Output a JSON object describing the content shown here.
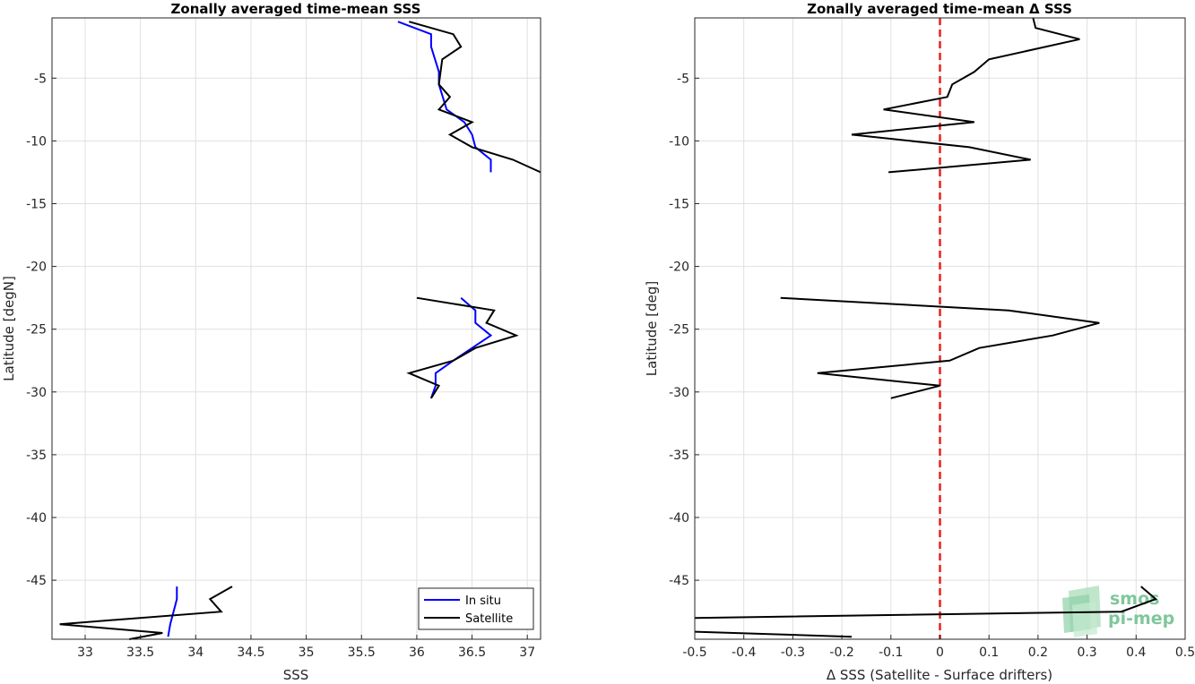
{
  "chart_data": [
    {
      "type": "line",
      "title": "Zonally averaged time-mean SSS",
      "xlabel": "SSS",
      "ylabel": "Latitude [degN]",
      "xlim": [
        32.7,
        37.12
      ],
      "ylim": [
        -49.7,
        -0.2
      ],
      "xticks": [
        33,
        33.5,
        34,
        34.5,
        35,
        35.5,
        36,
        36.5,
        37
      ],
      "xtick_labels": [
        "33",
        "33.5",
        "34",
        "34.5",
        "35",
        "35.5",
        "36",
        "36.5",
        "37"
      ],
      "yticks": [
        -5,
        -10,
        -15,
        -20,
        -25,
        -30,
        -35,
        -40,
        -45
      ],
      "ytick_labels": [
        "-5",
        "-10",
        "-15",
        "-20",
        "-25",
        "-30",
        "-35",
        "-40",
        "-45"
      ],
      "grid": true,
      "legend": "bottom-right",
      "series": [
        {
          "name": "In situ",
          "color": "#0000ff",
          "segments": [
            [
              [
                35.83,
                -0.5
              ],
              [
                36.13,
                -1.5
              ],
              [
                36.13,
                -2.5
              ],
              [
                36.2,
                -4.5
              ],
              [
                36.2,
                -5.5
              ],
              [
                36.27,
                -7.5
              ],
              [
                36.43,
                -8.5
              ],
              [
                36.5,
                -9.5
              ],
              [
                36.53,
                -10.5
              ],
              [
                36.67,
                -11.5
              ],
              [
                36.67,
                -12.5
              ]
            ],
            [
              [
                36.4,
                -22.5
              ],
              [
                36.53,
                -23.5
              ],
              [
                36.53,
                -24.5
              ],
              [
                36.67,
                -25.5
              ],
              [
                36.5,
                -26.5
              ],
              [
                36.33,
                -27.5
              ],
              [
                36.17,
                -28.5
              ],
              [
                36.17,
                -29.5
              ],
              [
                36.13,
                -30.5
              ]
            ],
            [
              [
                33.83,
                -45.5
              ],
              [
                33.83,
                -46.5
              ],
              [
                33.8,
                -47.5
              ],
              [
                33.77,
                -48.5
              ],
              [
                33.75,
                -49.5
              ]
            ]
          ]
        },
        {
          "name": "Satellite",
          "color": "#000000",
          "segments": [
            [
              [
                35.93,
                -0.5
              ],
              [
                36.33,
                -1.5
              ],
              [
                36.4,
                -2.5
              ],
              [
                36.23,
                -3.5
              ],
              [
                36.2,
                -5.5
              ],
              [
                36.3,
                -6.5
              ],
              [
                36.2,
                -7.5
              ],
              [
                36.5,
                -8.5
              ],
              [
                36.3,
                -9.5
              ],
              [
                36.5,
                -10.5
              ],
              [
                36.87,
                -11.5
              ],
              [
                37.12,
                -12.5
              ]
            ],
            [
              [
                36.0,
                -22.5
              ],
              [
                36.7,
                -23.5
              ],
              [
                36.63,
                -24.5
              ],
              [
                36.9,
                -25.5
              ],
              [
                36.53,
                -26.5
              ],
              [
                36.33,
                -27.5
              ],
              [
                35.93,
                -28.5
              ],
              [
                36.2,
                -29.5
              ],
              [
                36.13,
                -30.5
              ]
            ],
            [
              [
                34.33,
                -45.5
              ],
              [
                34.13,
                -46.5
              ],
              [
                34.23,
                -47.5
              ],
              [
                32.77,
                -48.5
              ],
              [
                33.7,
                -49.2
              ],
              [
                33.4,
                -49.7
              ]
            ]
          ]
        }
      ]
    },
    {
      "type": "line",
      "title": "Zonally averaged time-mean Δ SSS",
      "xlabel": "Δ SSS (Satellite - Surface drifters)",
      "ylabel": "Latitude [deg]",
      "xlim": [
        -0.5,
        0.5
      ],
      "ylim": [
        -49.7,
        -0.2
      ],
      "xticks": [
        -0.5,
        -0.4,
        -0.3,
        -0.2,
        -0.1,
        0,
        0.1,
        0.2,
        0.3,
        0.4,
        0.5
      ],
      "xtick_labels": [
        "-0.5",
        "-0.4",
        "-0.3",
        "-0.2",
        "-0.1",
        "0",
        "0.1",
        "0.2",
        "0.3",
        "0.4",
        "0.5"
      ],
      "yticks": [
        -5,
        -10,
        -15,
        -20,
        -25,
        -30,
        -35,
        -40,
        -45
      ],
      "ytick_labels": [
        "-5",
        "-10",
        "-15",
        "-20",
        "-25",
        "-30",
        "-35",
        "-40",
        "-45"
      ],
      "grid": true,
      "reference_line": {
        "x": 0,
        "color": "#e8221c",
        "style": "dashed"
      },
      "series": [
        {
          "color": "#000000",
          "segments": [
            [
              [
                0.19,
                -0.2
              ],
              [
                0.195,
                -1.0
              ],
              [
                0.285,
                -1.9
              ],
              [
                0.1,
                -3.5
              ],
              [
                0.07,
                -4.5
              ],
              [
                0.025,
                -5.5
              ],
              [
                0.015,
                -6.5
              ],
              [
                -0.115,
                -7.5
              ],
              [
                0.07,
                -8.5
              ],
              [
                -0.18,
                -9.5
              ],
              [
                0.06,
                -10.5
              ],
              [
                0.185,
                -11.5
              ],
              [
                -0.105,
                -12.5
              ]
            ],
            [
              [
                -0.325,
                -22.5
              ],
              [
                0.14,
                -23.5
              ],
              [
                0.325,
                -24.5
              ],
              [
                0.23,
                -25.5
              ],
              [
                0.08,
                -26.5
              ],
              [
                0.02,
                -27.5
              ],
              [
                -0.25,
                -28.5
              ],
              [
                0.0,
                -29.5
              ],
              [
                -0.1,
                -30.5
              ]
            ],
            [
              [
                0.41,
                -45.5
              ],
              [
                0.44,
                -46.5
              ],
              [
                0.37,
                -47.5
              ],
              [
                -0.5,
                -48.0
              ]
            ],
            [
              [
                -0.5,
                -49.1
              ],
              [
                -0.18,
                -49.5
              ]
            ]
          ]
        }
      ]
    }
  ],
  "logo": {
    "line1": "smos",
    "line2": "pi-mep"
  }
}
